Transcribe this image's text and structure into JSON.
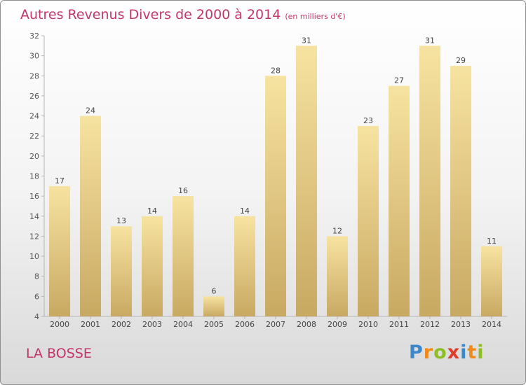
{
  "title": "Autres Revenus Divers de 2000 à 2014",
  "subtitle": "(en milliers d'€)",
  "city": "LA BOSSE",
  "logo": {
    "letters": [
      "P",
      "r",
      "o",
      "x",
      "i",
      "t",
      "i"
    ],
    "colors": [
      "#3b87c9",
      "#f08a1a",
      "#8cbf26",
      "#e23b2a",
      "#3b87c9",
      "#f08a1a",
      "#8cbf26"
    ]
  },
  "colors": {
    "title": "#c2366c",
    "bar_light": "#f7e3a1",
    "bar_dark": "#c8a962",
    "axis": "#b5b5b5"
  },
  "chart_data": {
    "type": "bar",
    "title": "Autres Revenus Divers de 2000 à 2014",
    "subtitle": "(en milliers d'€)",
    "categories": [
      "2000",
      "2001",
      "2002",
      "2003",
      "2004",
      "2005",
      "2006",
      "2007",
      "2008",
      "2009",
      "2010",
      "2011",
      "2012",
      "2013",
      "2014"
    ],
    "values": [
      17,
      24,
      13,
      14,
      16,
      6,
      14,
      28,
      31,
      12,
      23,
      27,
      31,
      29,
      11
    ],
    "ylim": [
      4,
      32
    ],
    "yticks": [
      4,
      6,
      8,
      10,
      12,
      14,
      16,
      18,
      20,
      22,
      24,
      26,
      28,
      30,
      32
    ],
    "grid": false,
    "legend": "none"
  }
}
